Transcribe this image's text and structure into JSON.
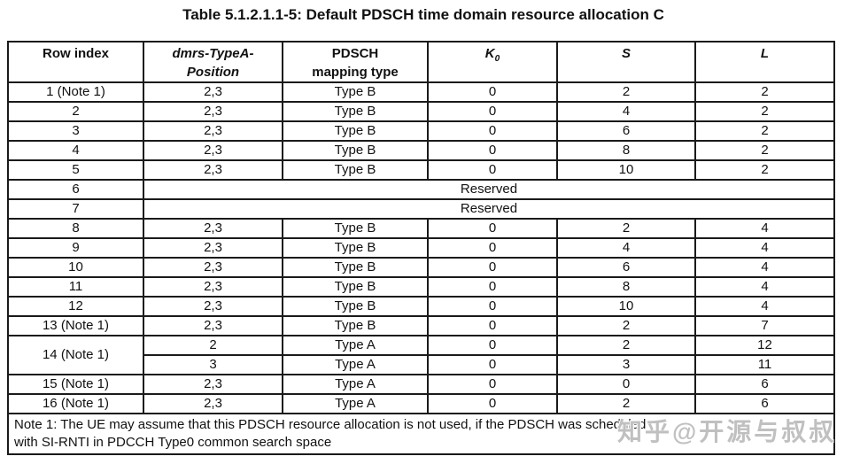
{
  "page": {
    "title": "Table 5.1.2.1.1-5: Default PDSCH time domain resource allocation C",
    "background_color": "#ffffff",
    "text_color": "#111111",
    "border_color": "#1a1a1a"
  },
  "table": {
    "headers": {
      "row_index": "Row index",
      "dmrs_line1": "dmrs-TypeA-",
      "dmrs_line2": "Position",
      "pdsch_line1": "PDSCH",
      "pdsch_line2": "mapping type",
      "k0_base": "K",
      "k0_sub": "0",
      "s": "S",
      "l": "L"
    },
    "rows": [
      {
        "cells": [
          "1 (Note 1)",
          "2,3",
          "Type B",
          "0",
          "2",
          "2"
        ]
      },
      {
        "cells": [
          "2",
          "2,3",
          "Type B",
          "0",
          "4",
          "2"
        ]
      },
      {
        "cells": [
          "3",
          "2,3",
          "Type B",
          "0",
          "6",
          "2"
        ]
      },
      {
        "cells": [
          "4",
          "2,3",
          "Type B",
          "0",
          "8",
          "2"
        ]
      },
      {
        "cells": [
          "5",
          "2,3",
          "Type B",
          "0",
          "10",
          "2"
        ]
      },
      {
        "reserved": true,
        "index": "6",
        "label": "Reserved"
      },
      {
        "reserved": true,
        "index": "7",
        "label": "Reserved"
      },
      {
        "cells": [
          "8",
          "2,3",
          "Type B",
          "0",
          "2",
          "4"
        ]
      },
      {
        "cells": [
          "9",
          "2,3",
          "Type B",
          "0",
          "4",
          "4"
        ]
      },
      {
        "cells": [
          "10",
          "2,3",
          "Type B",
          "0",
          "6",
          "4"
        ]
      },
      {
        "cells": [
          "11",
          "2,3",
          "Type B",
          "0",
          "8",
          "4"
        ]
      },
      {
        "cells": [
          "12",
          "2,3",
          "Type B",
          "0",
          "10",
          "4"
        ]
      },
      {
        "cells": [
          "13 (Note 1)",
          "2,3",
          "Type B",
          "0",
          "2",
          "7"
        ]
      },
      {
        "cells": [
          "14 (Note 1)",
          "2",
          "Type A",
          "0",
          "2",
          "12"
        ],
        "rowspan_first": 2
      },
      {
        "cells": [
          "3",
          "Type A",
          "0",
          "3",
          "11"
        ],
        "continuation": true
      },
      {
        "cells": [
          "15 (Note 1)",
          "2,3",
          "Type A",
          "0",
          "0",
          "6"
        ]
      },
      {
        "cells": [
          "16 (Note 1)",
          "2,3",
          "Type A",
          "0",
          "2",
          "6"
        ]
      }
    ],
    "note": {
      "line1": "Note 1: The UE may assume that this PDSCH resource allocation is not used, if the PDSCH was scheduled",
      "line2": "with SI-RNTI in PDCCH Type0 common search space"
    }
  },
  "watermark": {
    "text": "知乎@开源与叔叔",
    "color": "#969696"
  }
}
